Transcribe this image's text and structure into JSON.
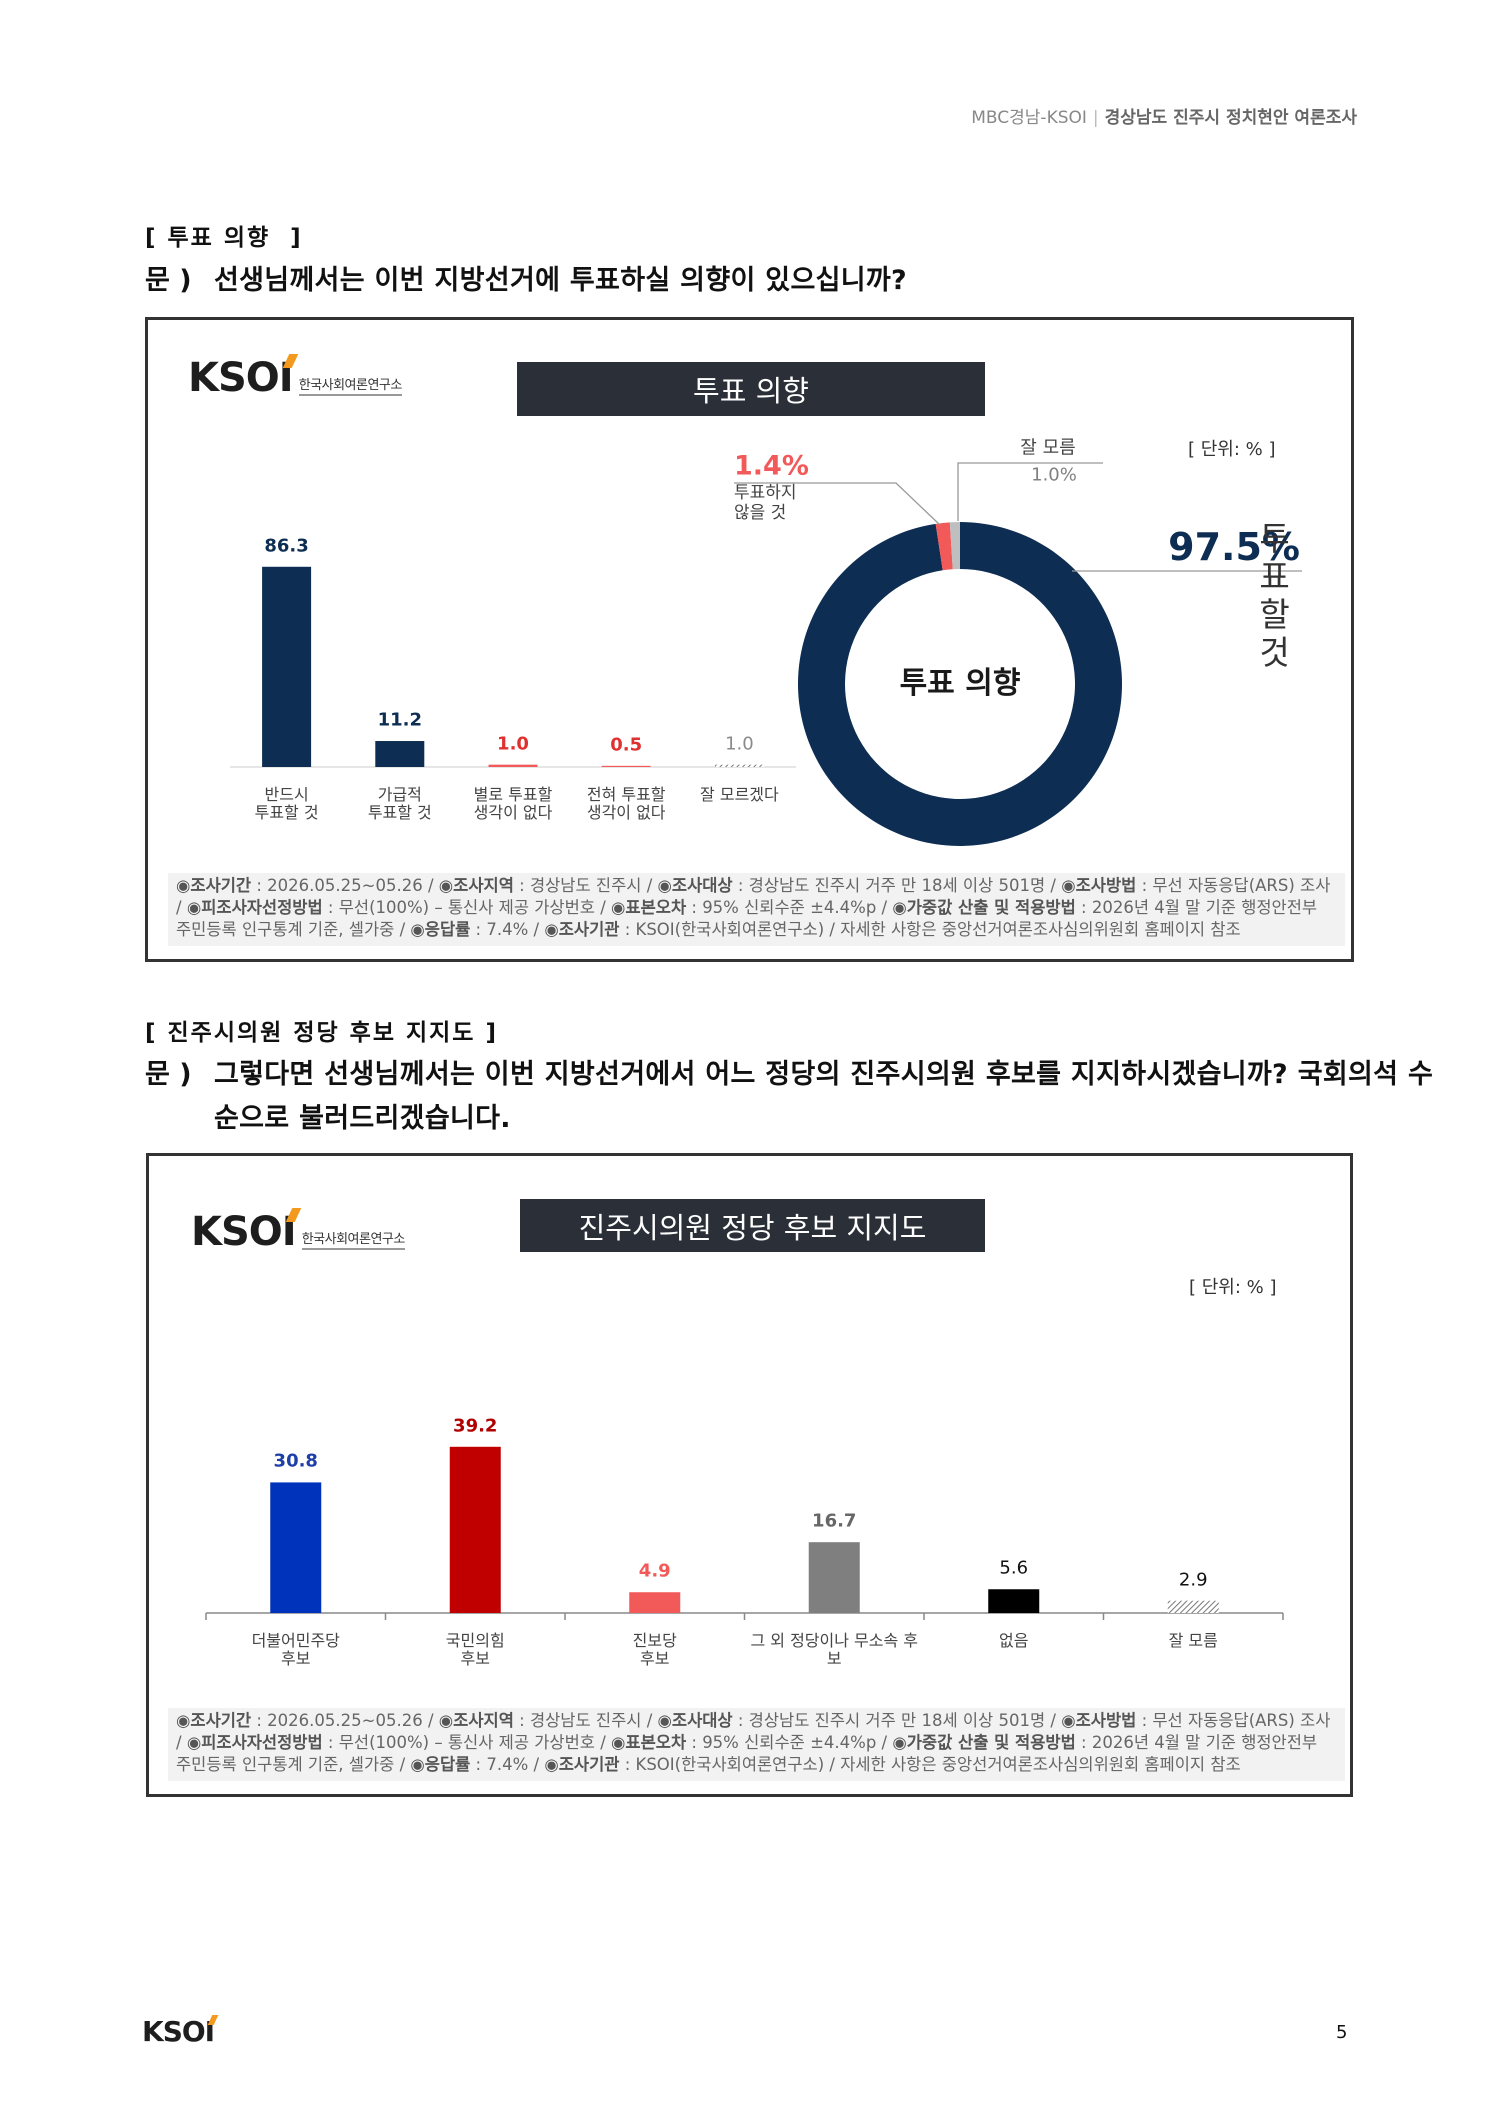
{
  "header": {
    "source": "MBC경남-KSOI",
    "divider": "|",
    "title": "경상남도 진주시 정치현안 여론조사"
  },
  "sections": [
    {
      "heading": "[ 투표 의향  ]",
      "question_label": "문 )",
      "question_lines": [
        "선생님께서는 이번 지방선거에 투표하실 의향이 있으십니까?"
      ],
      "chart_title": "투표 의향",
      "unit": "[ 단위: % ]"
    },
    {
      "heading": "[ 진주시의원 정당 후보 지지도 ]",
      "question_label": "문 )",
      "question_lines": [
        "그렇다면 선생님께서는 이번 지방선거에서 어느 정당의 진주시의원 후보를 지지하시겠습니까? 국회의석 수",
        "순으로 불러드리겠습니다."
      ],
      "chart_title": "진주시의원 정당 후보 지지도",
      "unit": "[ 단위: % ]"
    }
  ],
  "logo": {
    "mark": "KSOI",
    "sub": "한국사회여론연구소"
  },
  "footnote": [
    {
      "label": "◉조사기간",
      "text": " : 2026.05.25~05.26 / "
    },
    {
      "label": "◉조사지역",
      "text": " : 경상남도 진주시 / "
    },
    {
      "label": "◉조사대상",
      "text": " : 경상남도 진주시 거주 만 18세 이상 501명 / "
    },
    {
      "label": "◉조사방법",
      "text": " : 무선 자동응답(ARS) 조사 / "
    },
    {
      "label": "◉피조사자선정방법",
      "text": " : 무선(100%) – 통신사 제공 가상번호 / "
    },
    {
      "label": "◉표본오차",
      "text": " : 95% 신뢰수준 ±4.4%p / "
    },
    {
      "label": "◉가중값 산출 및 적용방법",
      "text": " : 2026년 4월 말 기준 행정안전부 주민등록 인구통계 기준, 셀가중 / "
    },
    {
      "label": "◉응답률",
      "text": " : 7.4% / "
    },
    {
      "label": "◉조사기관",
      "text": " : KSOI(한국사회여론연구소) / 자세한 사항은 중앙선거여론조사심의위원회 홈페이지 참조"
    }
  ],
  "page_number": 5,
  "chart_data": [
    {
      "type": "bar",
      "categories": [
        "반드시\n투표할 것",
        "가급적\n투표할 것",
        "별로 투표할\n생각이 없다",
        "전혀 투표할\n생각이 없다",
        "잘 모르겠다"
      ],
      "values": [
        86.3,
        11.2,
        1.0,
        0.5,
        1.0
      ],
      "value_labels": [
        "86.3",
        "11.2",
        "1.0",
        "0.5",
        "1.0"
      ],
      "colors": [
        "#0d2d52",
        "#0d2d52",
        "#f25a5a",
        "#f25a5a",
        "#9a9a9a"
      ],
      "fill_styles": [
        "solid",
        "solid",
        "solid",
        "solid",
        "hatched"
      ],
      "label_colors": [
        "#0d2d52",
        "#0d2d52",
        "#e0302f",
        "#e0302f",
        "#8a8a8a"
      ],
      "ylim": [
        0,
        100
      ]
    },
    {
      "type": "pie",
      "donut": true,
      "center_label": "투표 의향",
      "categories": [
        "투표할 것",
        "투표하지\n않을 것",
        "잘 모름"
      ],
      "values": [
        97.5,
        1.4,
        1.0
      ],
      "value_labels": [
        "97.5%",
        "1.4%",
        "1.0%"
      ],
      "colors": [
        "#0d2d52",
        "#f25a5a",
        "#bfbfbf"
      ],
      "label_colors": [
        "#0d2d52",
        "#f25a5a",
        "#808080"
      ]
    },
    {
      "type": "bar",
      "categories": [
        "더불어민주당\n후보",
        "국민의힘\n후보",
        "진보당\n후보",
        "그 외 정당이나 무소속 후\n보",
        "없음",
        "잘 모름"
      ],
      "values": [
        30.8,
        39.2,
        4.9,
        16.7,
        5.6,
        2.9
      ],
      "colors": [
        "#0033bb",
        "#c00000",
        "#f25a5a",
        "#7f7f7f",
        "#000000",
        "#777777"
      ],
      "fill_styles": [
        "solid",
        "solid",
        "solid",
        "solid",
        "solid",
        "hatched"
      ],
      "label_colors": [
        "#1f3fa8",
        "#b00000",
        "#f25a5a",
        "#666666",
        "#111111",
        "#111111"
      ],
      "ylim": [
        0,
        50
      ]
    }
  ]
}
